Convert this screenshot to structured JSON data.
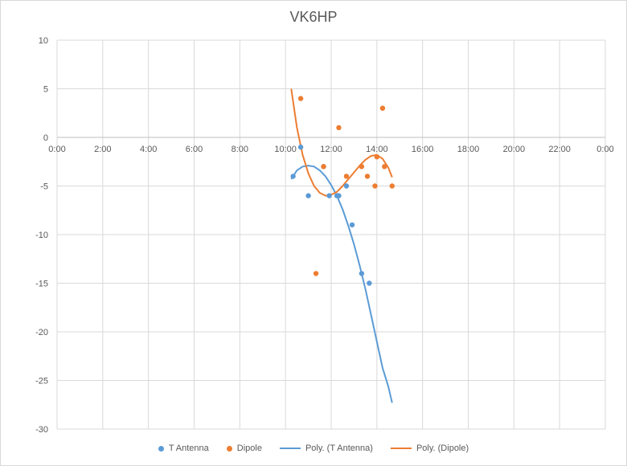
{
  "chart_data": {
    "type": "scatter",
    "title": "VK6HP",
    "xlabel": "",
    "ylabel": "",
    "x_unit": "time of day",
    "xlim": [
      "0:00",
      "24:00"
    ],
    "ylim": [
      -30,
      10
    ],
    "x_ticks": [
      "0:00",
      "2:00",
      "4:00",
      "6:00",
      "8:00",
      "10:00",
      "12:00",
      "14:00",
      "16:00",
      "18:00",
      "20:00",
      "22:00",
      "0:00"
    ],
    "y_ticks": [
      "10",
      "5",
      "0",
      "-5",
      "-10",
      "-15",
      "-20",
      "-25",
      "-30"
    ],
    "grid": true,
    "legend_position": "bottom",
    "series": [
      {
        "name": "T Antenna",
        "color": "#5b9bd5",
        "points": [
          {
            "x": "10:20",
            "y": -4
          },
          {
            "x": "10:40",
            "y": -1
          },
          {
            "x": "11:00",
            "y": -6
          },
          {
            "x": "11:40",
            "y": -3
          },
          {
            "x": "11:55",
            "y": -6
          },
          {
            "x": "12:15",
            "y": -6
          },
          {
            "x": "12:20",
            "y": -6
          },
          {
            "x": "12:40",
            "y": -5
          },
          {
            "x": "12:55",
            "y": -9
          },
          {
            "x": "13:20",
            "y": -14
          },
          {
            "x": "13:40",
            "y": -15
          }
        ]
      },
      {
        "name": "Dipole",
        "color": "#ed7d31",
        "points": [
          {
            "x": "10:40",
            "y": 4
          },
          {
            "x": "11:20",
            "y": -14
          },
          {
            "x": "11:40",
            "y": -3
          },
          {
            "x": "12:20",
            "y": 1
          },
          {
            "x": "12:40",
            "y": -4
          },
          {
            "x": "13:20",
            "y": -3
          },
          {
            "x": "13:35",
            "y": -4
          },
          {
            "x": "13:55",
            "y": -5
          },
          {
            "x": "14:00",
            "y": -2
          },
          {
            "x": "14:15",
            "y": 3
          },
          {
            "x": "14:20",
            "y": -3
          },
          {
            "x": "14:40",
            "y": -5
          }
        ]
      }
    ],
    "trendlines": [
      {
        "name": "Poly. (T Antenna)",
        "color": "#5b9bd5",
        "points": [
          {
            "x": "10:15",
            "y": -4.3
          },
          {
            "x": "10:30",
            "y": -3.4
          },
          {
            "x": "10:45",
            "y": -3.0
          },
          {
            "x": "11:00",
            "y": -2.9
          },
          {
            "x": "11:15",
            "y": -3.0
          },
          {
            "x": "11:30",
            "y": -3.4
          },
          {
            "x": "11:45",
            "y": -4.0
          },
          {
            "x": "12:00",
            "y": -4.9
          },
          {
            "x": "12:15",
            "y": -6.0
          },
          {
            "x": "12:30",
            "y": -7.4
          },
          {
            "x": "12:45",
            "y": -9.1
          },
          {
            "x": "13:00",
            "y": -11.0
          },
          {
            "x": "13:15",
            "y": -13.2
          },
          {
            "x": "13:30",
            "y": -15.6
          },
          {
            "x": "13:45",
            "y": -18.3
          },
          {
            "x": "14:00",
            "y": -21.0
          },
          {
            "x": "14:15",
            "y": -23.7
          },
          {
            "x": "14:30",
            "y": -25.6
          },
          {
            "x": "14:40",
            "y": -27.3
          }
        ]
      },
      {
        "name": "Poly. (Dipole)",
        "color": "#ed7d31",
        "points": [
          {
            "x": "10:15",
            "y": 5.0
          },
          {
            "x": "10:30",
            "y": 1.0
          },
          {
            "x": "10:45",
            "y": -1.8
          },
          {
            "x": "11:00",
            "y": -3.7
          },
          {
            "x": "11:15",
            "y": -5.0
          },
          {
            "x": "11:30",
            "y": -5.7
          },
          {
            "x": "11:45",
            "y": -6.0
          },
          {
            "x": "12:00",
            "y": -5.9
          },
          {
            "x": "12:15",
            "y": -5.6
          },
          {
            "x": "12:30",
            "y": -5.0
          },
          {
            "x": "12:45",
            "y": -4.3
          },
          {
            "x": "13:00",
            "y": -3.6
          },
          {
            "x": "13:15",
            "y": -2.9
          },
          {
            "x": "13:30",
            "y": -2.3
          },
          {
            "x": "13:45",
            "y": -1.9
          },
          {
            "x": "14:00",
            "y": -1.8
          },
          {
            "x": "14:15",
            "y": -2.2
          },
          {
            "x": "14:30",
            "y": -3.1
          },
          {
            "x": "14:40",
            "y": -4.1
          }
        ]
      }
    ]
  }
}
